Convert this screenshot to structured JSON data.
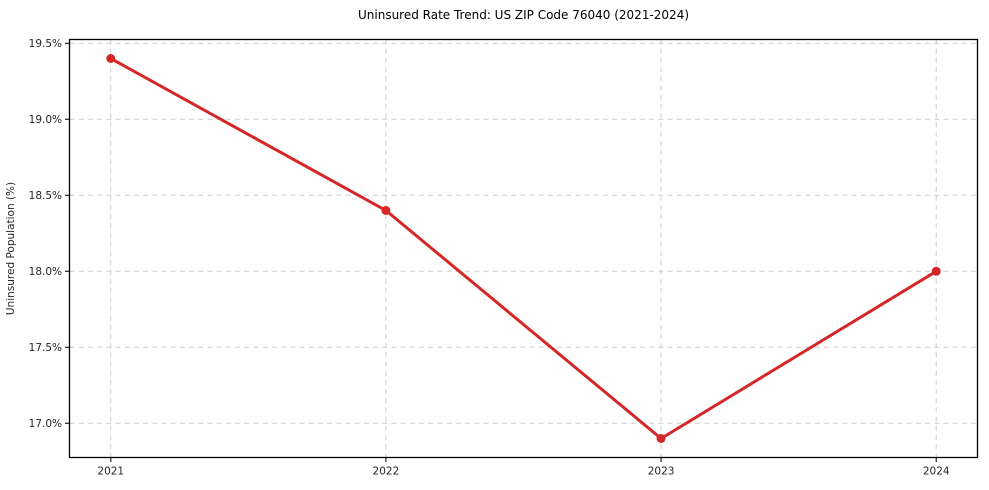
{
  "figure": {
    "background": "#ffffff"
  },
  "chart_data": {
    "type": "line",
    "title": "Uninsured Rate Trend: US ZIP Code 76040 (2021-2024)",
    "ylabel": "Uninsured Population (%)",
    "xlabel": "",
    "x": [
      2021,
      2022,
      2023,
      2024
    ],
    "x_ticks": [
      "2021",
      "2022",
      "2023",
      "2024"
    ],
    "values": [
      19.4,
      18.4,
      16.9,
      18.0
    ],
    "y_ticks": [
      "17.0%",
      "17.5%",
      "18.0%",
      "18.5%",
      "19.0%",
      "19.5%"
    ],
    "y_tick_values": [
      17.0,
      17.5,
      18.0,
      18.5,
      19.0,
      19.5
    ],
    "xlim": [
      2020.85,
      2024.15
    ],
    "ylim": [
      16.775,
      19.525
    ],
    "grid": true,
    "grid_style": "dashed",
    "grid_color": "#cccccc",
    "line_color": "#d62728",
    "marker": "circle",
    "marker_radius": 4.5,
    "axis_color": "#000000",
    "tick_text_color": "#262626",
    "legend_position": "none"
  }
}
